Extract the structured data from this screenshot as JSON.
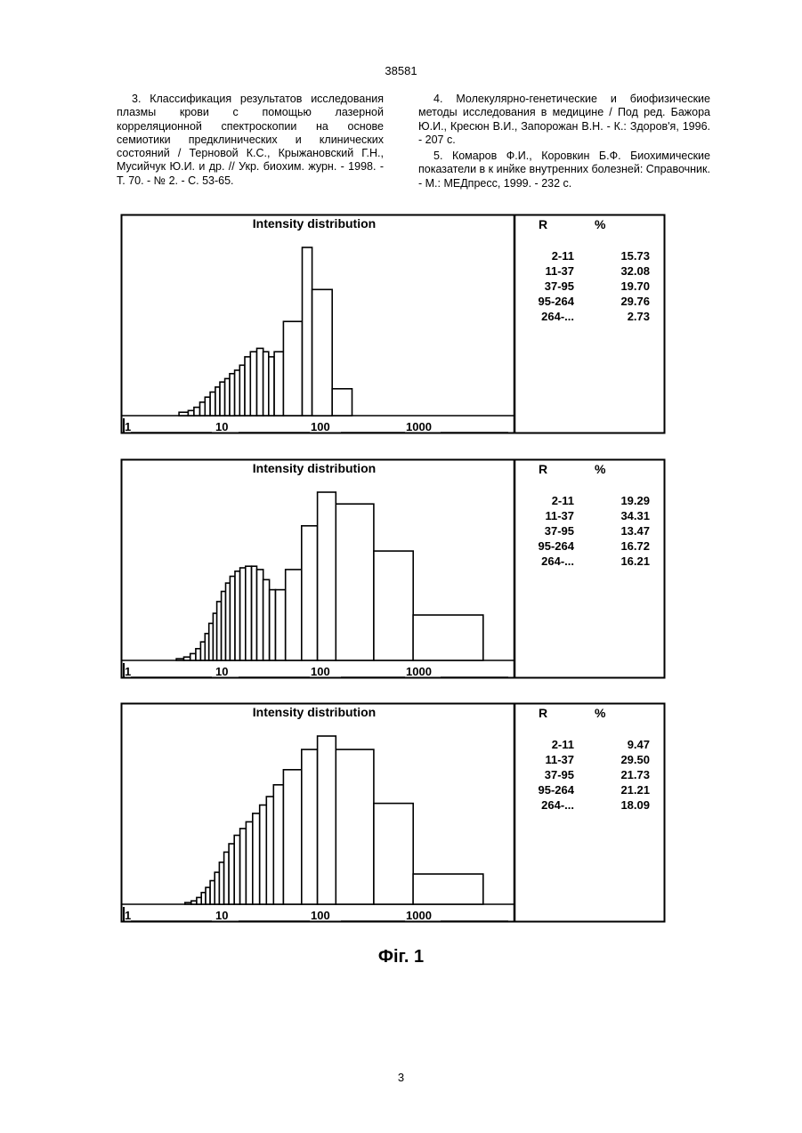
{
  "document": {
    "doc_number": "38581",
    "page_number": "3",
    "figure_caption": "Фіг. 1"
  },
  "references": {
    "left": [
      "3. Классификация результатов исследования плазмы крови с помощью лазерной корреляционной спектроскопии на основе семиотики предклинических и клинических состояний / Терновой К.С., Крыжановский Г.Н., Мусийчук Ю.И. и др. // Укр. биохим. журн. - 1998. - Т. 70. - № 2. - С. 53-65."
    ],
    "right": [
      "4. Молекулярно-генетические и биофизические методы исследования в медицине / Под ред. Бажора Ю.И., Кресюн В.И., Запорожан В.Н. - К.: Здоров'я, 1996. - 207 с.",
      "5. Комаров Ф.И., Коровкин Б.Ф. Биохимические показатели в к инйке внутренних болезней: Справочник. - М.: МЕДпресс, 1999. - 232 с."
    ]
  },
  "chart_data": [
    {
      "type": "bar",
      "title": "Intensity distribution",
      "x_scale": "log",
      "xlim": [
        1,
        10000
      ],
      "x_tick_labels": [
        "1",
        "10",
        "100",
        "1000"
      ],
      "y_scale_max": 100,
      "bins": [
        {
          "from": 3.2,
          "to": 4.0,
          "value": 2
        },
        {
          "from": 4.0,
          "to": 4.6,
          "value": 3
        },
        {
          "from": 4.6,
          "to": 5.3,
          "value": 5
        },
        {
          "from": 5.3,
          "to": 6.0,
          "value": 8
        },
        {
          "from": 6.0,
          "to": 6.8,
          "value": 11
        },
        {
          "from": 6.8,
          "to": 7.7,
          "value": 14
        },
        {
          "from": 7.7,
          "to": 8.6,
          "value": 17
        },
        {
          "from": 8.6,
          "to": 9.7,
          "value": 20
        },
        {
          "from": 9.7,
          "to": 10.9,
          "value": 22
        },
        {
          "from": 10.9,
          "to": 12.3,
          "value": 25
        },
        {
          "from": 12.3,
          "to": 13.9,
          "value": 27
        },
        {
          "from": 13.9,
          "to": 15.7,
          "value": 30
        },
        {
          "from": 15.7,
          "to": 18.0,
          "value": 35
        },
        {
          "from": 18.0,
          "to": 21.0,
          "value": 38
        },
        {
          "from": 21.0,
          "to": 24.5,
          "value": 40
        },
        {
          "from": 24.5,
          "to": 28.0,
          "value": 38
        },
        {
          "from": 28.0,
          "to": 32.0,
          "value": 35
        },
        {
          "from": 32.0,
          "to": 40.0,
          "value": 38
        },
        {
          "from": 40.0,
          "to": 63.0,
          "value": 56
        },
        {
          "from": 63.0,
          "to": 80.0,
          "value": 100
        },
        {
          "from": 80.0,
          "to": 130.0,
          "value": 75
        },
        {
          "from": 130.0,
          "to": 210.0,
          "value": 16
        }
      ],
      "table": {
        "headers": [
          "R",
          "%"
        ],
        "rows": [
          [
            "2-11",
            "15.73"
          ],
          [
            "11-37",
            "32.08"
          ],
          [
            "37-95",
            "19.70"
          ],
          [
            "95-264",
            "29.76"
          ],
          [
            "264-...",
            "2.73"
          ]
        ]
      }
    },
    {
      "type": "bar",
      "title": "Intensity distribution",
      "x_scale": "log",
      "xlim": [
        1,
        10000
      ],
      "x_tick_labels": [
        "1",
        "10",
        "100",
        "1000"
      ],
      "y_scale_max": 100,
      "bins": [
        {
          "from": 3.0,
          "to": 3.6,
          "value": 1
        },
        {
          "from": 3.6,
          "to": 4.2,
          "value": 2
        },
        {
          "from": 4.2,
          "to": 4.8,
          "value": 4
        },
        {
          "from": 4.8,
          "to": 5.4,
          "value": 7
        },
        {
          "from": 5.4,
          "to": 6.0,
          "value": 11
        },
        {
          "from": 6.0,
          "to": 6.6,
          "value": 16
        },
        {
          "from": 6.6,
          "to": 7.3,
          "value": 22
        },
        {
          "from": 7.3,
          "to": 8.0,
          "value": 28
        },
        {
          "from": 8.0,
          "to": 8.9,
          "value": 35
        },
        {
          "from": 8.9,
          "to": 9.9,
          "value": 41
        },
        {
          "from": 9.9,
          "to": 11.0,
          "value": 46
        },
        {
          "from": 11.0,
          "to": 12.4,
          "value": 50
        },
        {
          "from": 12.4,
          "to": 14.0,
          "value": 53
        },
        {
          "from": 14.0,
          "to": 16.0,
          "value": 55
        },
        {
          "from": 16.0,
          "to": 18.5,
          "value": 56
        },
        {
          "from": 18.5,
          "to": 21.0,
          "value": 56
        },
        {
          "from": 21.0,
          "to": 24.5,
          "value": 54
        },
        {
          "from": 24.5,
          "to": 28.5,
          "value": 48
        },
        {
          "from": 28.5,
          "to": 33.0,
          "value": 42
        },
        {
          "from": 33.0,
          "to": 42.0,
          "value": 42
        },
        {
          "from": 42.0,
          "to": 62.0,
          "value": 54
        },
        {
          "from": 62.0,
          "to": 91.0,
          "value": 80
        },
        {
          "from": 91.0,
          "to": 142.0,
          "value": 100
        },
        {
          "from": 142.0,
          "to": 355.0,
          "value": 93
        },
        {
          "from": 355.0,
          "to": 920.0,
          "value": 65
        },
        {
          "from": 920.0,
          "to": 5000.0,
          "value": 27
        }
      ],
      "table": {
        "headers": [
          "R",
          "%"
        ],
        "rows": [
          [
            "2-11",
            "19.29"
          ],
          [
            "11-37",
            "34.31"
          ],
          [
            "37-95",
            "13.47"
          ],
          [
            "95-264",
            "16.72"
          ],
          [
            "264-...",
            "16.21"
          ]
        ]
      }
    },
    {
      "type": "bar",
      "title": "Intensity distribution",
      "x_scale": "log",
      "xlim": [
        1,
        10000
      ],
      "x_tick_labels": [
        "1",
        "10",
        "100",
        "1000"
      ],
      "y_scale_max": 100,
      "bins": [
        {
          "from": 3.7,
          "to": 4.3,
          "value": 1
        },
        {
          "from": 4.3,
          "to": 4.9,
          "value": 2
        },
        {
          "from": 4.9,
          "to": 5.5,
          "value": 4
        },
        {
          "from": 5.5,
          "to": 6.1,
          "value": 7
        },
        {
          "from": 6.1,
          "to": 6.8,
          "value": 10
        },
        {
          "from": 6.8,
          "to": 7.6,
          "value": 14
        },
        {
          "from": 7.6,
          "to": 8.5,
          "value": 19
        },
        {
          "from": 8.5,
          "to": 9.5,
          "value": 25
        },
        {
          "from": 9.5,
          "to": 10.7,
          "value": 31
        },
        {
          "from": 10.7,
          "to": 12.2,
          "value": 36
        },
        {
          "from": 12.2,
          "to": 14.0,
          "value": 41
        },
        {
          "from": 14.0,
          "to": 16.2,
          "value": 45
        },
        {
          "from": 16.2,
          "to": 19.0,
          "value": 49
        },
        {
          "from": 19.0,
          "to": 22.5,
          "value": 54
        },
        {
          "from": 22.5,
          "to": 26.5,
          "value": 59
        },
        {
          "from": 26.5,
          "to": 31.5,
          "value": 64
        },
        {
          "from": 31.5,
          "to": 40.0,
          "value": 71
        },
        {
          "from": 40.0,
          "to": 62.0,
          "value": 80
        },
        {
          "from": 62.0,
          "to": 91.0,
          "value": 92
        },
        {
          "from": 91.0,
          "to": 142.0,
          "value": 100
        },
        {
          "from": 142.0,
          "to": 355.0,
          "value": 92
        },
        {
          "from": 355.0,
          "to": 920.0,
          "value": 60
        },
        {
          "from": 920.0,
          "to": 5000.0,
          "value": 18
        }
      ],
      "table": {
        "headers": [
          "R",
          "%"
        ],
        "rows": [
          [
            "2-11",
            "9.47"
          ],
          [
            "11-37",
            "29.50"
          ],
          [
            "37-95",
            "21.73"
          ],
          [
            "95-264",
            "21.21"
          ],
          [
            "264-...",
            "18.09"
          ]
        ]
      }
    }
  ]
}
